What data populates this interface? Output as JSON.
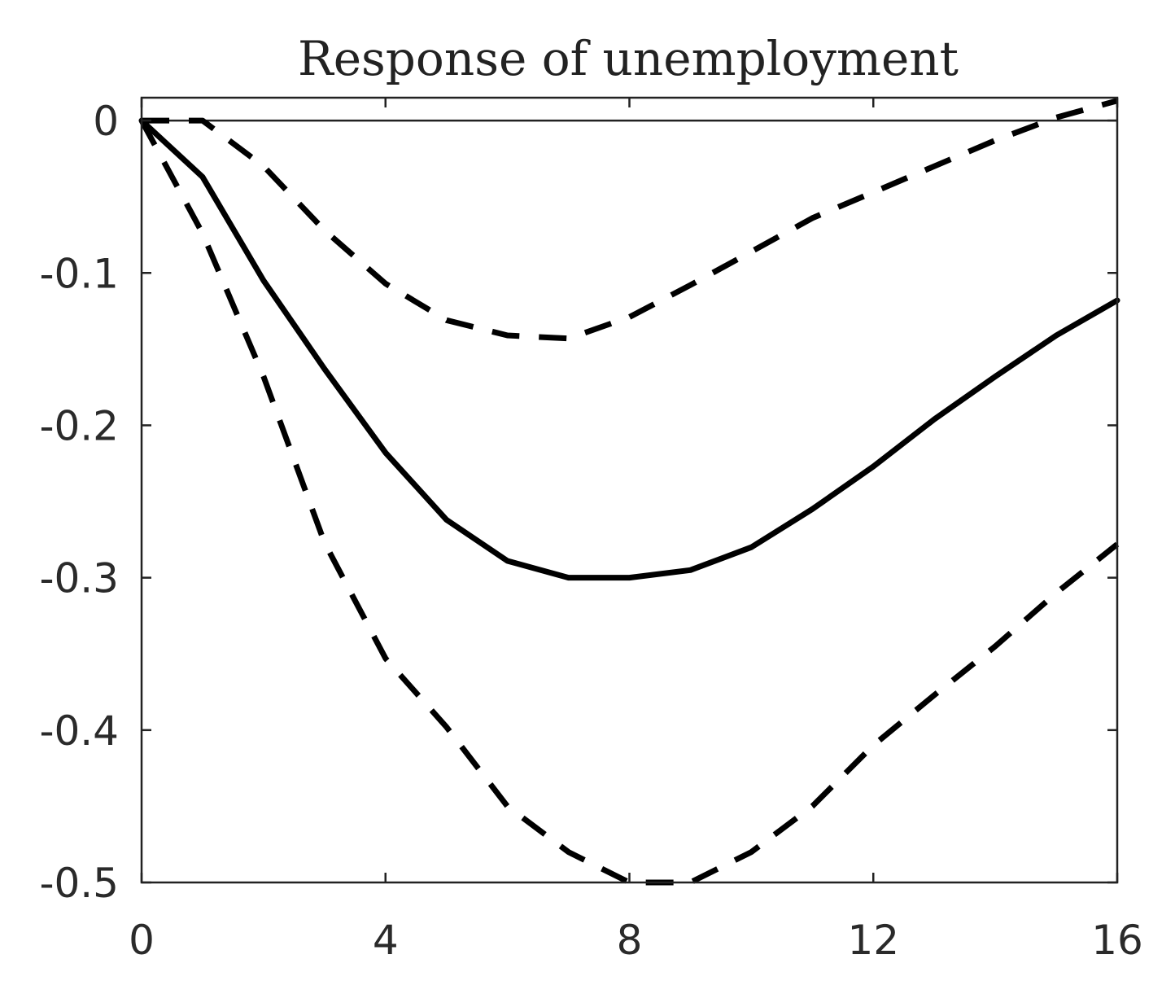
{
  "chart_data": {
    "type": "line",
    "title": "Response of unemployment",
    "xlabel": "",
    "ylabel": "",
    "xlim": [
      0,
      16
    ],
    "ylim": [
      -0.5,
      0.015
    ],
    "xticks": [
      0,
      4,
      8,
      12,
      16
    ],
    "yticks": [
      0,
      -0.1,
      -0.2,
      -0.3,
      -0.4,
      -0.5
    ],
    "xtick_labels": [
      "0",
      "4",
      "8",
      "12",
      "16"
    ],
    "ytick_labels": [
      "0",
      "-0.1",
      "-0.2",
      "-0.3",
      "-0.4",
      "-0.5"
    ],
    "grid": false,
    "zero_line": true,
    "x": [
      0,
      1,
      2,
      3,
      4,
      5,
      6,
      7,
      8,
      9,
      10,
      11,
      12,
      13,
      14,
      15,
      16
    ],
    "series": [
      {
        "style": "solid",
        "color": "#000000",
        "values": [
          0,
          -0.037,
          -0.105,
          -0.163,
          -0.218,
          -0.262,
          -0.289,
          -0.3,
          -0.3,
          -0.295,
          -0.28,
          -0.255,
          -0.227,
          -0.196,
          -0.168,
          -0.141,
          -0.118
        ]
      },
      {
        "style": "dashed",
        "color": "#000000",
        "values": [
          0,
          0,
          -0.03,
          -0.072,
          -0.107,
          -0.131,
          -0.141,
          -0.143,
          -0.129,
          -0.108,
          -0.086,
          -0.064,
          -0.047,
          -0.03,
          -0.013,
          0.002,
          0.013
        ]
      },
      {
        "style": "dashed",
        "color": "#000000",
        "values": [
          0,
          -0.074,
          -0.168,
          -0.277,
          -0.353,
          -0.398,
          -0.45,
          -0.48,
          -0.5,
          -0.5,
          -0.48,
          -0.45,
          -0.41,
          -0.377,
          -0.345,
          -0.31,
          -0.278
        ]
      }
    ]
  }
}
